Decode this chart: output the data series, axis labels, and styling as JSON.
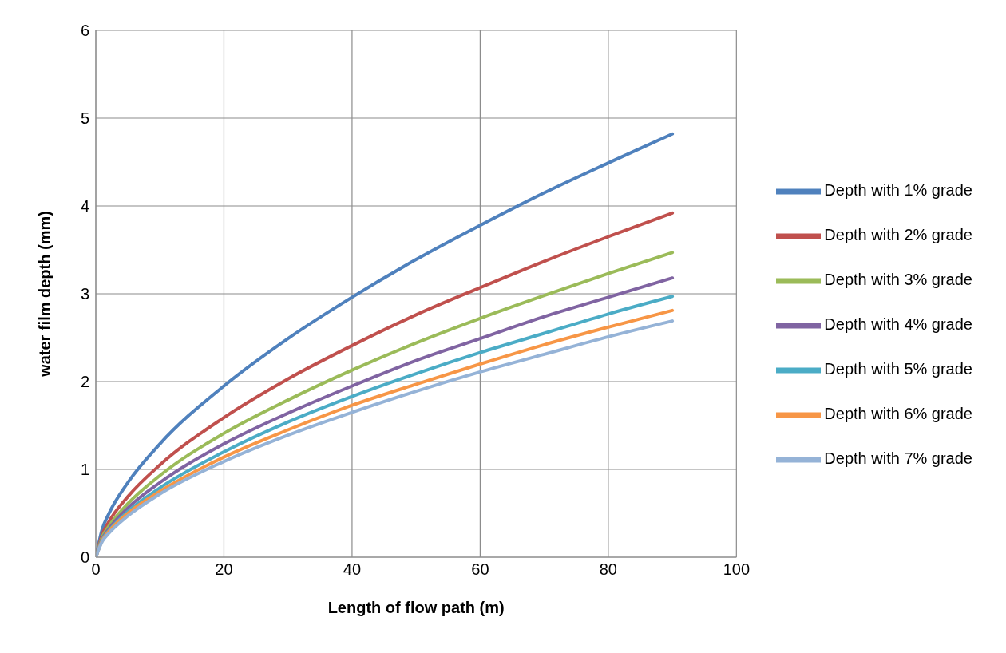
{
  "chart_data": {
    "type": "line",
    "xlabel": "Length of flow path (m)",
    "ylabel": "water film depth  (mm)",
    "x": [
      0,
      1,
      2,
      5,
      10,
      20,
      30,
      40,
      50,
      60,
      70,
      80,
      90
    ],
    "series": [
      {
        "name": "Depth with 1% grade",
        "color": "#4f81bd",
        "values": [
          0,
          0.32,
          0.49,
          0.85,
          1.29,
          1.95,
          2.49,
          2.96,
          3.39,
          3.78,
          4.15,
          4.49,
          4.82
        ]
      },
      {
        "name": "Depth with 2% grade",
        "color": "#c0504d",
        "values": [
          0,
          0.26,
          0.4,
          0.69,
          1.05,
          1.59,
          2.03,
          2.41,
          2.76,
          3.07,
          3.37,
          3.65,
          3.92
        ]
      },
      {
        "name": "Depth with 3% grade",
        "color": "#9bbb59",
        "values": [
          0,
          0.23,
          0.35,
          0.61,
          0.93,
          1.41,
          1.79,
          2.13,
          2.44,
          2.72,
          2.98,
          3.23,
          3.47
        ]
      },
      {
        "name": "Depth with 4% grade",
        "color": "#8064a2",
        "values": [
          0,
          0.21,
          0.32,
          0.56,
          0.85,
          1.29,
          1.64,
          1.95,
          2.24,
          2.49,
          2.74,
          2.96,
          3.18
        ]
      },
      {
        "name": "Depth with 5% grade",
        "color": "#4bacc6",
        "values": [
          0,
          0.2,
          0.3,
          0.52,
          0.79,
          1.2,
          1.54,
          1.83,
          2.09,
          2.33,
          2.55,
          2.77,
          2.97
        ]
      },
      {
        "name": "Depth with 6% grade",
        "color": "#f79646",
        "values": [
          0,
          0.19,
          0.29,
          0.5,
          0.75,
          1.14,
          1.45,
          1.73,
          1.97,
          2.2,
          2.42,
          2.62,
          2.81
        ]
      },
      {
        "name": "Depth with 7% grade",
        "color": "#95b3d7",
        "values": [
          0,
          0.18,
          0.27,
          0.47,
          0.72,
          1.09,
          1.39,
          1.65,
          1.89,
          2.11,
          2.31,
          2.51,
          2.69
        ]
      }
    ],
    "xlim": [
      0,
      100
    ],
    "xticks": [
      0,
      20,
      40,
      60,
      80,
      100
    ],
    "ylim": [
      0,
      6
    ],
    "yticks": [
      0,
      1,
      2,
      3,
      4,
      5,
      6
    ],
    "grid": true,
    "legend": "right",
    "marker": "none",
    "line_style": "solid"
  }
}
